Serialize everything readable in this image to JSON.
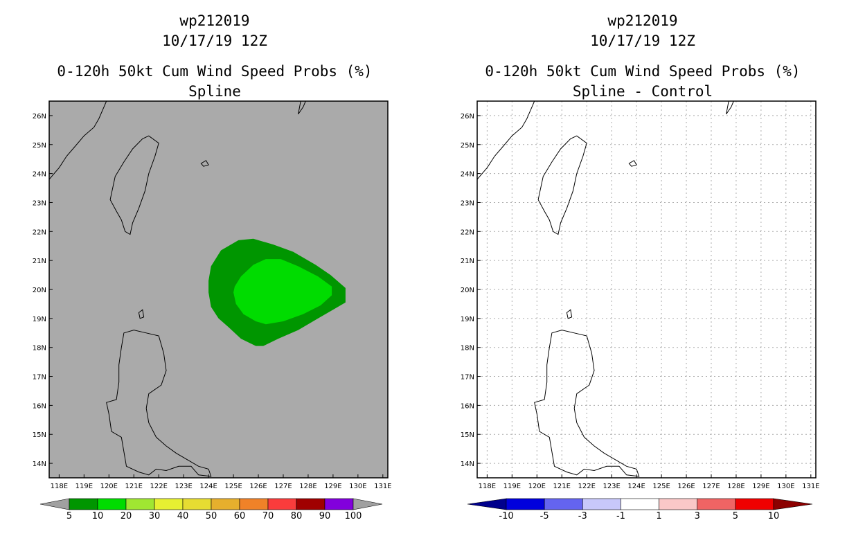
{
  "chart_data": [
    {
      "type": "heatmap",
      "title_lines": [
        "wp212019",
        "10/17/19 12Z",
        "0-120h 50kt Cum Wind Speed Probs (%)",
        "Spline"
      ],
      "xlabel": "",
      "ylabel": "",
      "x_ticks": [
        "118E",
        "119E",
        "120E",
        "121E",
        "122E",
        "123E",
        "124E",
        "125E",
        "126E",
        "127E",
        "128E",
        "129E",
        "130E",
        "131E"
      ],
      "y_ticks": [
        "14N",
        "15N",
        "16N",
        "17N",
        "18N",
        "19N",
        "20N",
        "21N",
        "22N",
        "23N",
        "24N",
        "25N",
        "26N"
      ],
      "xlim": [
        117.6,
        131.2
      ],
      "ylim": [
        13.5,
        26.5
      ],
      "background_color": "#aaaaaa",
      "grid": false,
      "colorbar": {
        "labels": [
          "5",
          "10",
          "20",
          "30",
          "40",
          "50",
          "60",
          "70",
          "80",
          "90",
          "100"
        ],
        "colors": [
          "#009600",
          "#00dc00",
          "#a0e632",
          "#e6f032",
          "#e6dc32",
          "#e6af2d",
          "#f08228",
          "#fa3c3c",
          "#a00000",
          "#8200dc"
        ],
        "under_color": "#a0a0a0",
        "over_color": "#a0a0a0"
      },
      "contours": [
        {
          "level": "5-10",
          "color": "#009600",
          "points": [
            [
              124.0,
              19.9
            ],
            [
              124.1,
              19.4
            ],
            [
              124.4,
              19.0
            ],
            [
              124.8,
              18.7
            ],
            [
              125.3,
              18.3
            ],
            [
              125.9,
              18.05
            ],
            [
              126.2,
              18.05
            ],
            [
              126.8,
              18.3
            ],
            [
              127.6,
              18.6
            ],
            [
              128.4,
              19.0
            ],
            [
              129.0,
              19.3
            ],
            [
              129.5,
              19.55
            ],
            [
              129.5,
              20.05
            ],
            [
              128.9,
              20.5
            ],
            [
              128.3,
              20.85
            ],
            [
              127.4,
              21.3
            ],
            [
              126.6,
              21.55
            ],
            [
              125.8,
              21.75
            ],
            [
              125.2,
              21.7
            ],
            [
              124.5,
              21.35
            ],
            [
              124.1,
              20.8
            ],
            [
              124.0,
              20.3
            ]
          ]
        },
        {
          "level": "10-20",
          "color": "#00dc00",
          "points": [
            [
              125.0,
              19.9
            ],
            [
              125.1,
              19.5
            ],
            [
              125.4,
              19.15
            ],
            [
              125.9,
              18.9
            ],
            [
              126.3,
              18.8
            ],
            [
              127.0,
              18.9
            ],
            [
              127.8,
              19.15
            ],
            [
              128.5,
              19.45
            ],
            [
              128.95,
              19.8
            ],
            [
              128.95,
              20.1
            ],
            [
              128.4,
              20.45
            ],
            [
              127.6,
              20.8
            ],
            [
              126.9,
              21.05
            ],
            [
              126.3,
              21.05
            ],
            [
              125.8,
              20.85
            ],
            [
              125.3,
              20.45
            ],
            [
              125.05,
              20.1
            ]
          ]
        }
      ]
    },
    {
      "type": "heatmap",
      "title_lines": [
        "wp212019",
        "10/17/19 12Z",
        "0-120h 50kt Cum Wind Speed Probs (%)",
        "Spline - Control"
      ],
      "xlabel": "",
      "ylabel": "",
      "x_ticks": [
        "118E",
        "119E",
        "120E",
        "121E",
        "122E",
        "123E",
        "124E",
        "125E",
        "126E",
        "127E",
        "128E",
        "129E",
        "130E",
        "131E"
      ],
      "y_ticks": [
        "14N",
        "15N",
        "16N",
        "17N",
        "18N",
        "19N",
        "20N",
        "21N",
        "22N",
        "23N",
        "24N",
        "25N",
        "26N"
      ],
      "xlim": [
        117.6,
        131.2
      ],
      "ylim": [
        13.5,
        26.5
      ],
      "background_color": "#ffffff",
      "grid": true,
      "colorbar": {
        "labels": [
          "-10",
          "-5",
          "-3",
          "-1",
          "1",
          "3",
          "5",
          "10"
        ],
        "colors": [
          "#0000dc",
          "#6464f0",
          "#c8c8fa",
          "#ffffff",
          "#fac8c8",
          "#f06464",
          "#f00000"
        ],
        "under_color": "#00008c",
        "over_color": "#8c0000"
      },
      "contours": []
    }
  ]
}
